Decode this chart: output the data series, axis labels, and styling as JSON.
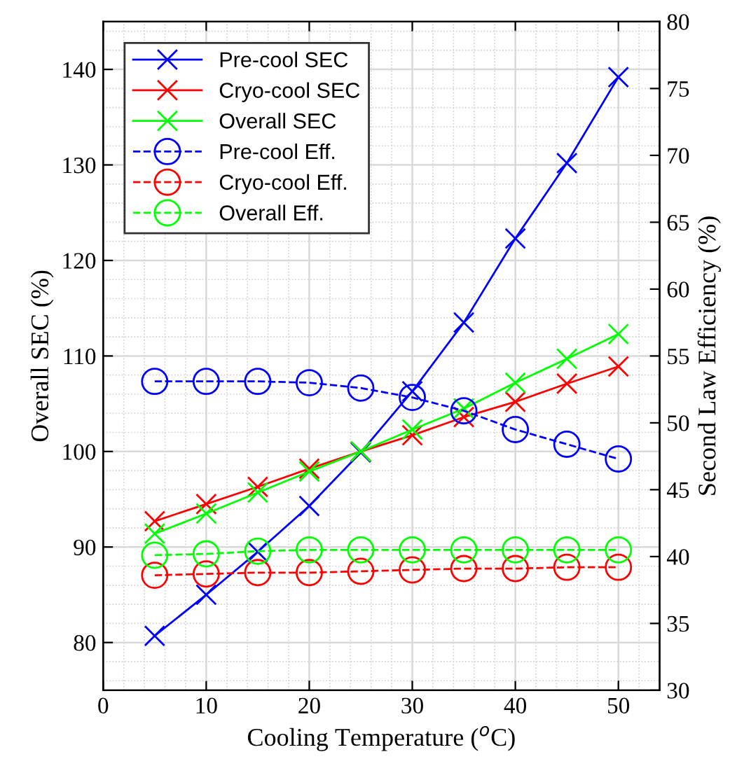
{
  "chart_data": {
    "type": "line",
    "xlabel": "Cooling Temperature ($^{o}$C)",
    "ylabel": "Overall SEC (%)",
    "y2label": "Second Law Efficiency (%)",
    "x": [
      5,
      10,
      15,
      20,
      25,
      30,
      35,
      40,
      45,
      50
    ],
    "series": [
      {
        "name": "Pre-cool SEC",
        "color": "#0000ff",
        "marker": "cross",
        "line_style": "solid",
        "values": [
          80.7,
          85.0,
          89.5,
          94.3,
          99.9,
          106.3,
          113.5,
          122.3,
          130.2,
          139.2
        ]
      },
      {
        "name": "Cryo-cool SEC",
        "color": "#ff0000",
        "marker": "cross",
        "line_style": "solid",
        "values": [
          92.7,
          94.5,
          96.3,
          98.2,
          100.0,
          101.7,
          103.6,
          105.2,
          107.1,
          108.9
        ]
      },
      {
        "name": "Overall SEC",
        "color": "#00ff00",
        "marker": "cross",
        "line_style": "solid",
        "values": [
          91.4,
          93.5,
          95.7,
          97.9,
          100.0,
          102.3,
          104.5,
          107.2,
          109.7,
          112.3
        ]
      },
      {
        "name": "Pre-cool Eff.",
        "color": "#0000ff",
        "marker": "circle",
        "line_style": "dashed",
        "axis": "y2",
        "values": [
          53.1,
          53.1,
          53.1,
          53.0,
          52.6,
          51.9,
          50.9,
          49.5,
          48.4,
          47.3
        ]
      },
      {
        "name": "Cryo-cool Eff.",
        "color": "#ff0000",
        "marker": "circle",
        "line_style": "dashed",
        "axis": "y2",
        "values": [
          38.6,
          38.7,
          38.8,
          38.8,
          38.9,
          39.0,
          39.1,
          39.1,
          39.2,
          39.2
        ]
      },
      {
        "name": "Overall Eff.",
        "color": "#00ff00",
        "marker": "circle",
        "line_style": "dashed",
        "axis": "y2",
        "values": [
          40.1,
          40.2,
          40.4,
          40.5,
          40.5,
          40.5,
          40.5,
          40.5,
          40.5,
          40.5
        ]
      }
    ],
    "xlim": [
      0,
      54
    ],
    "xticks": [
      0,
      10,
      20,
      30,
      40,
      50
    ],
    "ylim": [
      75,
      145
    ],
    "yticks": [
      80,
      90,
      100,
      110,
      120,
      130,
      140
    ],
    "y2lim": [
      30,
      80
    ],
    "y2ticks": [
      30,
      35,
      40,
      45,
      50,
      55,
      60,
      65,
      70,
      75,
      80
    ],
    "grid": true,
    "legend": "top left"
  }
}
